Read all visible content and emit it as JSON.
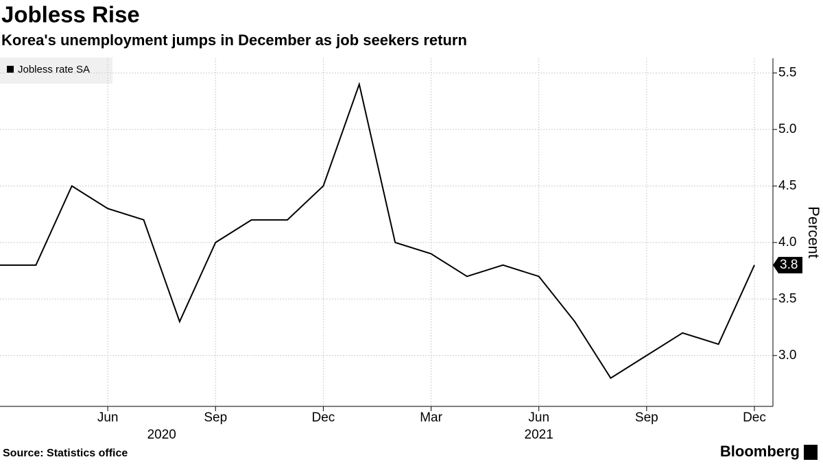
{
  "chart_data": {
    "type": "line",
    "title": "Jobless Rise",
    "subtitle": "Korea's unemployment jumps in December as job seekers return",
    "source": "Source: Statistics office",
    "brand": "Bloomberg",
    "y_axis_label": "Percent",
    "categories": [
      null,
      null,
      null,
      "Jun",
      null,
      null,
      "Sep",
      null,
      null,
      "Dec",
      null,
      null,
      "Mar",
      null,
      null,
      "Jun",
      null,
      null,
      "Sep",
      null,
      null,
      "Dec"
    ],
    "years": [
      "2020",
      "2021"
    ],
    "series": [
      {
        "name": "Jobless rate SA",
        "color": "#000000",
        "values": [
          3.8,
          3.8,
          4.5,
          4.3,
          4.2,
          3.3,
          4.0,
          4.2,
          4.2,
          4.5,
          5.4,
          4.0,
          3.9,
          3.7,
          3.8,
          3.7,
          3.3,
          2.8,
          3.0,
          3.2,
          3.1,
          3.8
        ]
      }
    ],
    "ylim": [
      2.55,
      5.63
    ],
    "yticks": [
      {
        "value": 3,
        "label": "3.0"
      },
      {
        "value": 3.5,
        "label": "3.5"
      },
      {
        "value": 4,
        "label": "4.0"
      },
      {
        "value": 4.5,
        "label": "4.5"
      },
      {
        "value": 5,
        "label": "5.0"
      },
      {
        "value": 5.5,
        "label": "5.5"
      }
    ],
    "grid": true
  }
}
